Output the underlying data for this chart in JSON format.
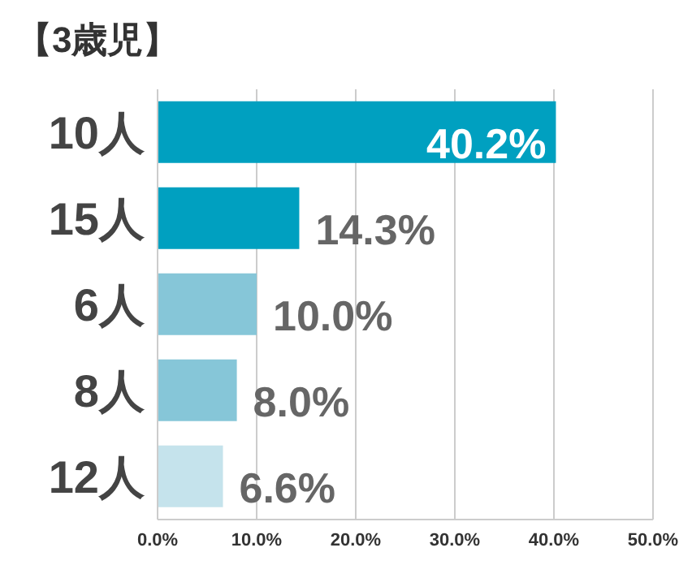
{
  "chart_data": {
    "type": "bar",
    "orientation": "horizontal",
    "title": "【3歳児】",
    "categories": [
      "10人",
      "15人",
      "6人",
      "8人",
      "12人"
    ],
    "values": [
      40.2,
      14.3,
      10.0,
      8.0,
      6.6
    ],
    "value_labels": [
      "40.2%",
      "14.3%",
      "10.0%",
      "8.0%",
      "6.6%"
    ],
    "colors": [
      "#00a0c0",
      "#00a0c0",
      "#86c6d8",
      "#86c6d8",
      "#c5e3ec"
    ],
    "xlim": [
      0,
      50
    ],
    "xticks": [
      {
        "value": 0,
        "label": "0.0%"
      },
      {
        "value": 10,
        "label": "10.0%"
      },
      {
        "value": 20,
        "label": "20.0%"
      },
      {
        "value": 30,
        "label": "30.0%"
      },
      {
        "value": 40,
        "label": "40.0%"
      },
      {
        "value": 50,
        "label": "50.0%"
      }
    ],
    "grid": "x"
  }
}
